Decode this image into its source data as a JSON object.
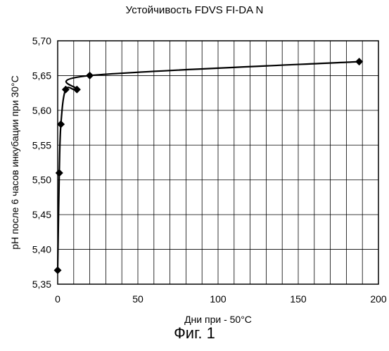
{
  "chart_data": {
    "type": "line",
    "title": "Устойчивость FDVS FI-DA N",
    "xlabel": "Дни при - 50°C",
    "ylabel": "pH после 6 часов инкубации при 30°C",
    "xlim": [
      0,
      200
    ],
    "ylim": [
      5.35,
      5.7
    ],
    "x_tick_labels": [
      "0",
      "50",
      "100",
      "150",
      "200"
    ],
    "y_tick_labels": [
      "5,35",
      "5,40",
      "5,45",
      "5,50",
      "5,55",
      "5,60",
      "5,65",
      "5,70"
    ],
    "grid": true,
    "series": [
      {
        "marker": "diamond",
        "x": [
          0,
          1,
          2,
          5,
          12,
          20,
          188
        ],
        "y": [
          5.37,
          5.51,
          5.58,
          5.63,
          5.63,
          5.65,
          5.67
        ]
      }
    ]
  },
  "figure_caption": "Фиг. 1"
}
